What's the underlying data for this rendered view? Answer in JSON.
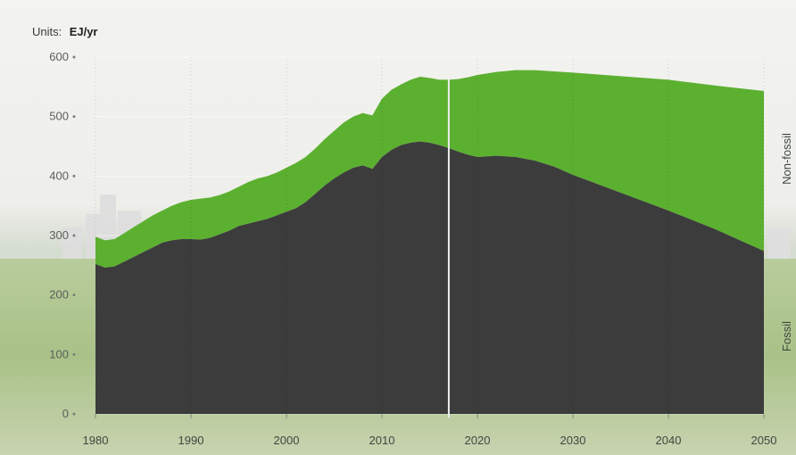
{
  "chart_data": {
    "type": "area",
    "stacked": true,
    "units_prefix": "Units:",
    "units": "EJ/yr",
    "xlim": [
      1980,
      2050
    ],
    "ylim": [
      0,
      600
    ],
    "y_ticks": [
      {
        "value": 0,
        "label": "0"
      },
      {
        "value": 100,
        "label": "100"
      },
      {
        "value": 200,
        "label": "200"
      },
      {
        "value": 300,
        "label": "300"
      },
      {
        "value": 400,
        "label": "400"
      },
      {
        "value": 500,
        "label": "500"
      },
      {
        "value": 600,
        "label": "600"
      }
    ],
    "x_ticks": [
      {
        "value": 1980,
        "label": "1980"
      },
      {
        "value": 1990,
        "label": "1990"
      },
      {
        "value": 2000,
        "label": "2000"
      },
      {
        "value": 2010,
        "label": "2010"
      },
      {
        "value": 2020,
        "label": "2020"
      },
      {
        "value": 2030,
        "label": "2030"
      },
      {
        "value": 2040,
        "label": "2040"
      },
      {
        "value": 2050,
        "label": "2050"
      }
    ],
    "divider_year": 2017,
    "grid": true,
    "series": [
      {
        "name": "Fossil",
        "color": "#3c3c3c",
        "points": [
          [
            1980,
            252
          ],
          [
            1981,
            246
          ],
          [
            1982,
            248
          ],
          [
            1983,
            256
          ],
          [
            1984,
            264
          ],
          [
            1985,
            272
          ],
          [
            1986,
            280
          ],
          [
            1987,
            288
          ],
          [
            1988,
            292
          ],
          [
            1989,
            294
          ],
          [
            1990,
            294
          ],
          [
            1991,
            293
          ],
          [
            1992,
            296
          ],
          [
            1993,
            302
          ],
          [
            1994,
            308
          ],
          [
            1995,
            316
          ],
          [
            1996,
            320
          ],
          [
            1997,
            324
          ],
          [
            1998,
            328
          ],
          [
            1999,
            334
          ],
          [
            2000,
            340
          ],
          [
            2001,
            346
          ],
          [
            2002,
            356
          ],
          [
            2003,
            370
          ],
          [
            2004,
            384
          ],
          [
            2005,
            396
          ],
          [
            2006,
            406
          ],
          [
            2007,
            414
          ],
          [
            2008,
            418
          ],
          [
            2009,
            412
          ],
          [
            2010,
            432
          ],
          [
            2011,
            444
          ],
          [
            2012,
            452
          ],
          [
            2013,
            456
          ],
          [
            2014,
            458
          ],
          [
            2015,
            456
          ],
          [
            2016,
            452
          ],
          [
            2017,
            447
          ],
          [
            2018,
            441
          ],
          [
            2019,
            436
          ],
          [
            2020,
            432
          ],
          [
            2022,
            434
          ],
          [
            2024,
            432
          ],
          [
            2026,
            426
          ],
          [
            2028,
            416
          ],
          [
            2030,
            402
          ],
          [
            2035,
            372
          ],
          [
            2040,
            342
          ],
          [
            2045,
            310
          ],
          [
            2050,
            274
          ]
        ]
      },
      {
        "name": "Non-fossil",
        "color": "#5cb030",
        "points": [
          [
            1980,
            298
          ],
          [
            1981,
            292
          ],
          [
            1982,
            294
          ],
          [
            1983,
            304
          ],
          [
            1984,
            314
          ],
          [
            1985,
            324
          ],
          [
            1986,
            334
          ],
          [
            1987,
            342
          ],
          [
            1988,
            350
          ],
          [
            1989,
            356
          ],
          [
            1990,
            360
          ],
          [
            1991,
            362
          ],
          [
            1992,
            364
          ],
          [
            1993,
            368
          ],
          [
            1994,
            374
          ],
          [
            1995,
            382
          ],
          [
            1996,
            390
          ],
          [
            1997,
            396
          ],
          [
            1998,
            400
          ],
          [
            1999,
            406
          ],
          [
            2000,
            414
          ],
          [
            2001,
            422
          ],
          [
            2002,
            432
          ],
          [
            2003,
            446
          ],
          [
            2004,
            462
          ],
          [
            2005,
            476
          ],
          [
            2006,
            490
          ],
          [
            2007,
            500
          ],
          [
            2008,
            506
          ],
          [
            2009,
            502
          ],
          [
            2010,
            530
          ],
          [
            2011,
            545
          ],
          [
            2012,
            554
          ],
          [
            2013,
            562
          ],
          [
            2014,
            567
          ],
          [
            2015,
            565
          ],
          [
            2016,
            562
          ],
          [
            2017,
            562
          ],
          [
            2018,
            563
          ],
          [
            2019,
            566
          ],
          [
            2020,
            570
          ],
          [
            2022,
            575
          ],
          [
            2024,
            578
          ],
          [
            2026,
            578
          ],
          [
            2028,
            576
          ],
          [
            2030,
            574
          ],
          [
            2035,
            568
          ],
          [
            2040,
            562
          ],
          [
            2045,
            552
          ],
          [
            2050,
            543
          ]
        ]
      }
    ]
  }
}
